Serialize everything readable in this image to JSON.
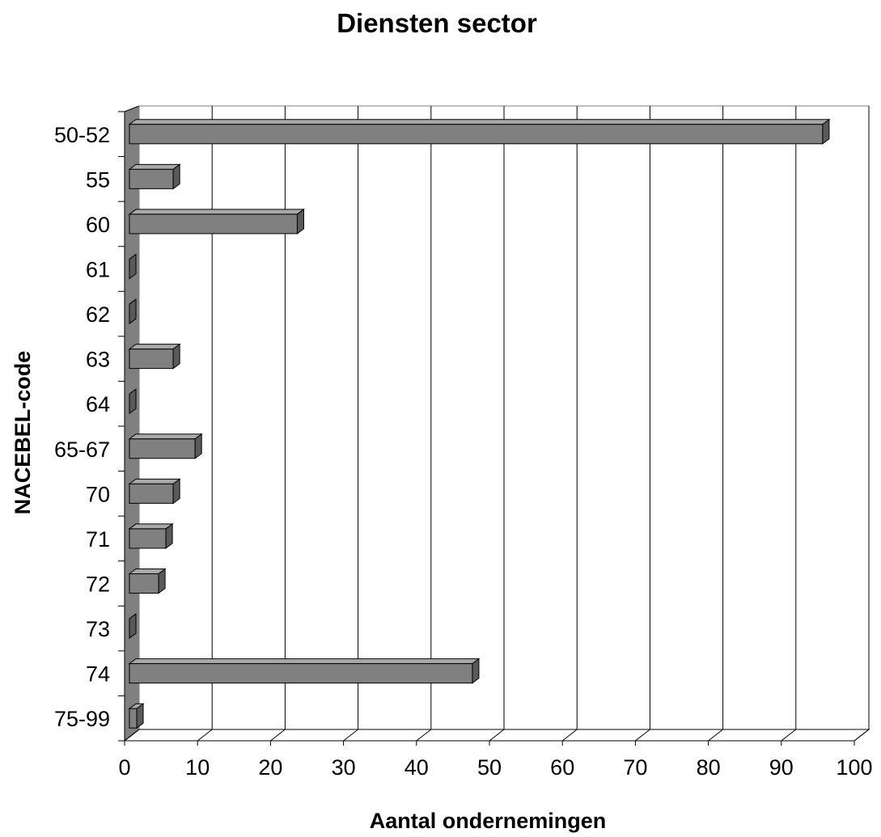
{
  "chart_data": {
    "type": "bar",
    "orientation": "horizontal",
    "title": "Diensten sector",
    "xlabel": "Aantal ondernemingen",
    "ylabel": "NACEBEL-code",
    "categories": [
      "50-52",
      "55",
      "60",
      "61",
      "62",
      "63",
      "64",
      "65-67",
      "70",
      "71",
      "72",
      "73",
      "74",
      "75-99"
    ],
    "values": [
      95,
      6,
      23,
      0,
      0,
      6,
      0,
      9,
      6,
      5,
      4,
      0,
      47,
      1
    ],
    "xlim": [
      0,
      100
    ],
    "xticks": [
      "0",
      "10",
      "20",
      "30",
      "40",
      "50",
      "60",
      "70",
      "80",
      "90",
      "100"
    ],
    "grid": "vertical",
    "legend": "none",
    "colors": {
      "bar_front": "#808080",
      "bar_side": "#5a5a5a",
      "bar_top": "#a8a8a8",
      "left_wall": "#808080",
      "grid_line": "#000000",
      "text": "#000000"
    }
  }
}
